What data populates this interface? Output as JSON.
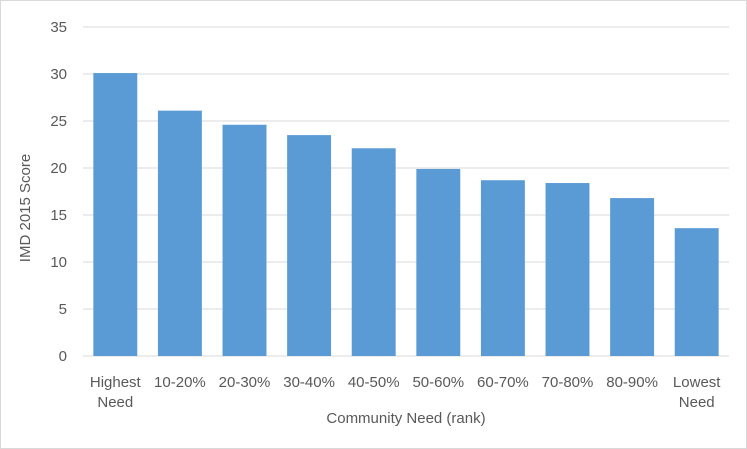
{
  "chart_data": {
    "type": "bar",
    "categories": [
      [
        "Highest",
        "Need"
      ],
      [
        "10-20%"
      ],
      [
        "20-30%"
      ],
      [
        "30-40%"
      ],
      [
        "40-50%"
      ],
      [
        "50-60%"
      ],
      [
        "60-70%"
      ],
      [
        "70-80%"
      ],
      [
        "80-90%"
      ],
      [
        "Lowest",
        "Need"
      ]
    ],
    "values": [
      30.1,
      26.1,
      24.6,
      23.5,
      22.1,
      19.9,
      18.7,
      18.4,
      16.8,
      13.6
    ],
    "title": "",
    "xlabel": "Community Need (rank)",
    "ylabel": "IMD 2015 Score",
    "ylim": [
      0,
      35
    ],
    "yticks": [
      0,
      5,
      10,
      15,
      20,
      25,
      30,
      35
    ],
    "grid": true,
    "legend": "none",
    "colors": {
      "bar": "#5b9bd5",
      "grid": "#d9d9d9",
      "text": "#595959"
    }
  }
}
